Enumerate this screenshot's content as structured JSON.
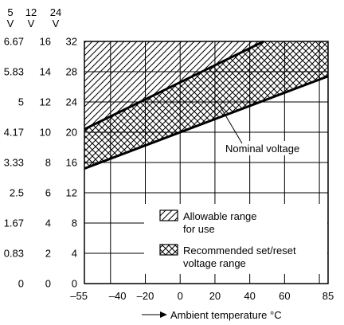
{
  "chart_data": {
    "type": "area",
    "xlabel": "Ambient temperature °C",
    "x_ticks": [
      -55,
      -40,
      -20,
      0,
      20,
      40,
      60,
      85
    ],
    "x_grid": [
      -40,
      -20,
      0,
      20,
      40,
      60,
      80
    ],
    "xlim": [
      -55,
      85
    ],
    "y_axes": [
      {
        "header": [
          "5",
          "V"
        ],
        "ticks": [
          "0",
          "0.83",
          "1.67",
          "2.5",
          "3.33",
          "4.17",
          "5",
          "5.83",
          "6.67"
        ]
      },
      {
        "header": [
          "12",
          "V"
        ],
        "ticks": [
          "0",
          "2",
          "4",
          "6",
          "8",
          "10",
          "12",
          "14",
          "16"
        ]
      },
      {
        "header": [
          "24",
          "V"
        ],
        "ticks": [
          "0",
          "4",
          "8",
          "12",
          "16",
          "20",
          "24",
          "28",
          "32"
        ]
      }
    ],
    "ylim_24v": [
      0,
      32
    ],
    "boundaries": {
      "upper_line": {
        "x": [
          -55,
          48
        ],
        "y": [
          20.4,
          32
        ]
      },
      "lower_line": {
        "x": [
          -55,
          85
        ],
        "y": [
          15.2,
          27.4
        ]
      },
      "allowable_top_y": 32
    },
    "annotations": [
      {
        "text": "Nominal voltage",
        "arrow_to": {
          "x": 22,
          "y": 23.8
        }
      }
    ],
    "legend": [
      {
        "pattern": "diagonal",
        "label_lines": [
          "Allowable range",
          "for use"
        ]
      },
      {
        "pattern": "crosshatch",
        "label_lines": [
          "Recommended set/reset",
          "voltage range"
        ]
      }
    ],
    "grid": true
  }
}
